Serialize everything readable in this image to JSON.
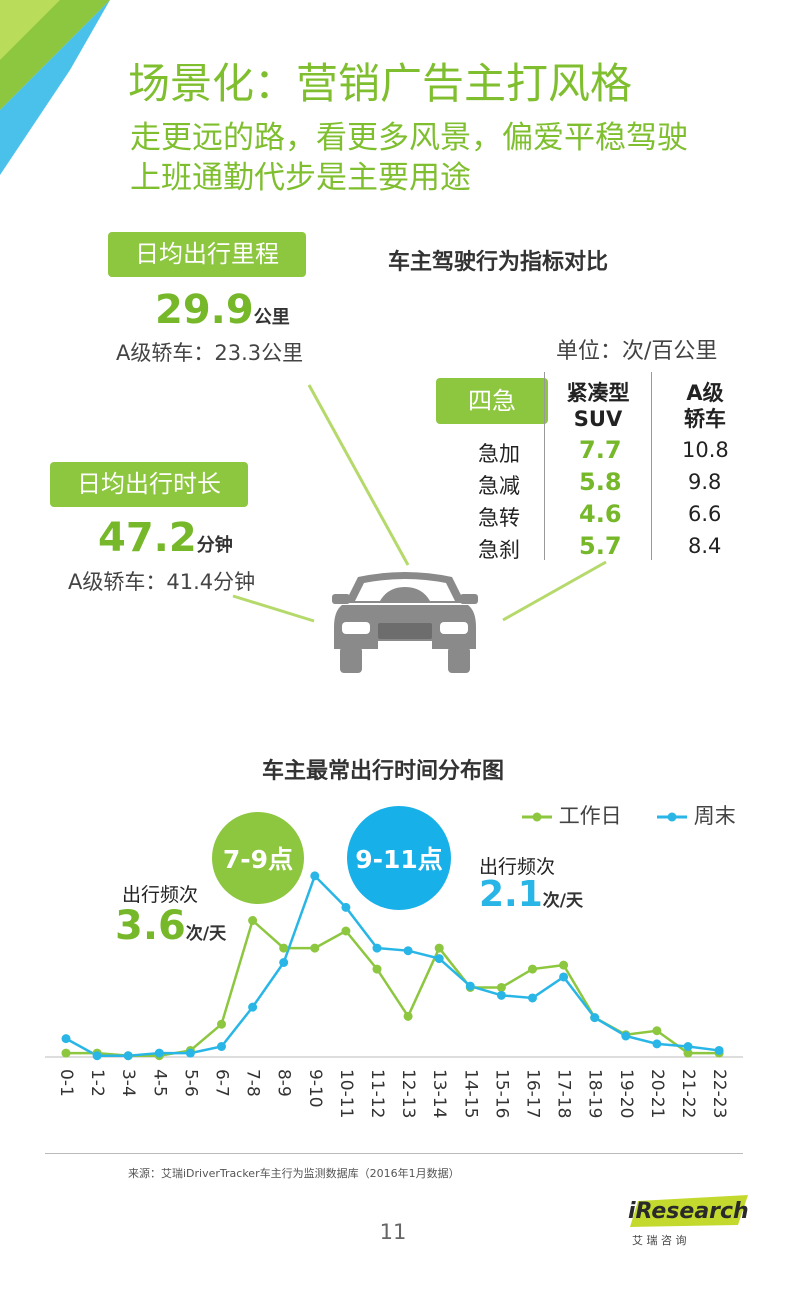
{
  "header": {
    "title": "场景化：营销广告主打风格",
    "subtitle_line1": "走更远的路，看更多风景，偏爱平稳驾驶",
    "subtitle_line2": "上班通勤代步是主要用途"
  },
  "colors": {
    "green": "#8dc63f",
    "dark_green": "#76b82a",
    "blue": "#29b6e6",
    "car_gray": "#8a8a8a"
  },
  "mileage": {
    "tag": "日均出行里程",
    "value": "29.9",
    "unit": "公里",
    "compare": "A级轿车：23.3公里"
  },
  "duration": {
    "tag": "日均出行时长",
    "value": "47.2",
    "unit": "分钟",
    "compare": "A级轿车：41.4分钟"
  },
  "behavior": {
    "heading": "车主驾驶行为指标对比",
    "unit": "单位：次/百公里",
    "tag": "四急",
    "col1": [
      "紧凑型",
      "SUV"
    ],
    "col2": [
      "A级",
      "轿车"
    ],
    "rows": [
      {
        "label": "急加",
        "suv": "7.7",
        "sedan": "10.8"
      },
      {
        "label": "急减",
        "suv": "5.8",
        "sedan": "9.8"
      },
      {
        "label": "急转",
        "suv": "4.6",
        "sedan": "6.6"
      },
      {
        "label": "急刹",
        "suv": "5.7",
        "sedan": "8.4"
      }
    ]
  },
  "chart_data": {
    "type": "line",
    "title": "车主最常出行时间分布图",
    "categories": [
      "0-1",
      "1-2",
      "3-4",
      "4-5",
      "5-6",
      "6-7",
      "7-8",
      "8-9",
      "9-10",
      "10-11",
      "11-12",
      "12-13",
      "13-14",
      "14-15",
      "15-16",
      "16-17",
      "17-18",
      "18-19",
      "19-20",
      "20-21",
      "21-22",
      "22-23"
    ],
    "series": [
      {
        "name": "工作日",
        "color": "#8dc63f",
        "values": [
          1.5,
          1.5,
          0.5,
          0.5,
          2.5,
          12.5,
          52,
          41.5,
          41.5,
          48,
          33.5,
          15.5,
          41.5,
          26.5,
          26.5,
          33.5,
          35,
          15,
          8.5,
          10,
          1.5,
          1.5
        ]
      },
      {
        "name": "周末",
        "color": "#29b6e6",
        "values": [
          7,
          0.5,
          0.5,
          1.5,
          1.5,
          4,
          19,
          36,
          69,
          57,
          41.5,
          40.5,
          37.5,
          27,
          23.5,
          22.5,
          30.5,
          15,
          8,
          5,
          4,
          2.5
        ]
      }
    ],
    "ylim": [
      0,
      80
    ],
    "legend": "top-right",
    "grid": false,
    "annotations": {
      "weekday_label": "出行频次",
      "weekday_value": "3.6",
      "weekday_unit": "次/天",
      "weekend_label": "出行频次",
      "weekend_value": "2.1",
      "weekend_unit": "次/天",
      "weekday_peak": "7-9点",
      "weekend_peak": "9-11点"
    }
  },
  "footer": {
    "source": "来源：艾瑞iDriverTracker车主行为监测数据库（2016年1月数据）",
    "page": "11",
    "logo_text": "iResearch",
    "logo_sub": "艾 瑞 咨 询"
  }
}
